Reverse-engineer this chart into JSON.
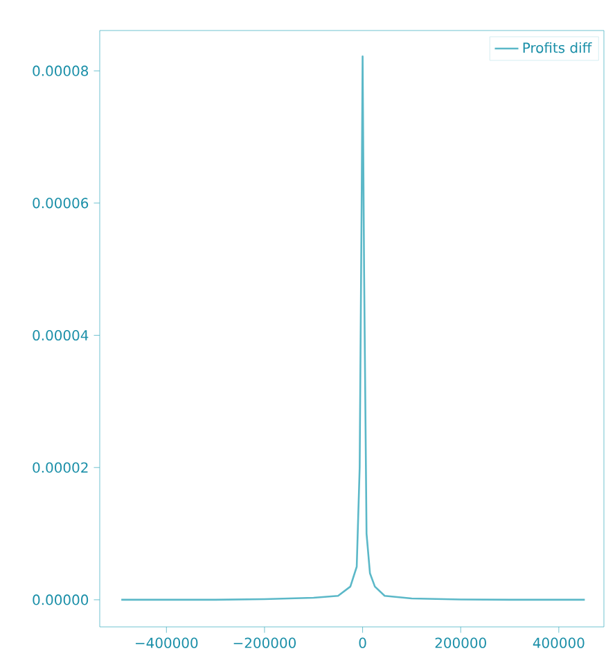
{
  "chart_data": {
    "type": "line",
    "series": [
      {
        "name": "Profits diff",
        "color": "#5bb8c8",
        "x": [
          -492000,
          -300000,
          -200000,
          -100000,
          -50000,
          -25000,
          -12000,
          -6000,
          -2000,
          0,
          3000,
          8000,
          15000,
          25000,
          45000,
          100000,
          200000,
          300000,
          453000
        ],
        "values": [
          0,
          0,
          1e-07,
          3e-07,
          6e-07,
          2e-06,
          5e-06,
          2e-05,
          6e-05,
          8.22e-05,
          5e-05,
          1e-05,
          4e-06,
          2e-06,
          6e-07,
          2e-07,
          5e-08,
          0,
          0
        ]
      }
    ],
    "xlim": [
      -536000,
      492000
    ],
    "ylim": [
      -4.1e-06,
      8.61e-05
    ],
    "xticks": [
      {
        "value": -400000,
        "label": "−400000"
      },
      {
        "value": -200000,
        "label": "−200000"
      },
      0,
      200000,
      400000
    ],
    "yticks": [
      {
        "value": 0,
        "label": "0.00000"
      },
      {
        "value": 2e-05,
        "label": "0.00002"
      },
      {
        "value": 4e-05,
        "label": "0.00004"
      },
      {
        "value": 6e-05,
        "label": "0.00006"
      },
      {
        "value": 8e-05,
        "label": "0.00008"
      }
    ],
    "legend": "top right",
    "grid": false,
    "marker": "none",
    "line_style": "solid"
  }
}
